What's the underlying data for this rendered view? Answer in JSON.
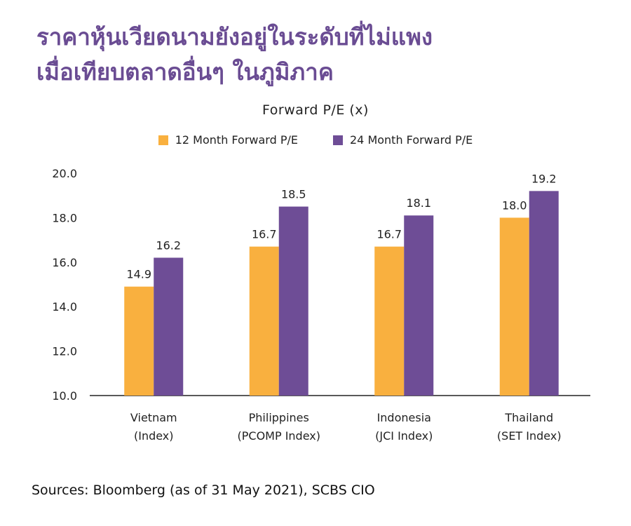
{
  "title_lines": [
    "ราคาหุ้นเวียดนามยังอยู่ในระดับที่ไม่แพง",
    "เมื่อเทียบตลาดอื่นๆ ในภูมิภาค"
  ],
  "source": "Sources: Bloomberg (as of 31 May 2021), SCBS CIO",
  "colors": {
    "series1": "#f9b03f",
    "series2": "#6e4d96"
  },
  "chart_data": {
    "type": "bar",
    "title": "Forward P/E (x)",
    "categories": [
      [
        "Vietnam",
        "(Index)"
      ],
      [
        "Philippines",
        "(PCOMP Index)"
      ],
      [
        "Indonesia",
        "(JCI Index)"
      ],
      [
        "Thailand",
        "(SET Index)"
      ]
    ],
    "series": [
      {
        "name": "12 Month Forward P/E",
        "values": [
          14.9,
          16.7,
          16.7,
          18.0
        ]
      },
      {
        "name": "24 Month Forward P/E",
        "values": [
          16.2,
          18.5,
          18.1,
          19.2
        ]
      }
    ],
    "ylim": [
      10,
      20
    ],
    "yticks": [
      "10.0",
      "12.0",
      "14.0",
      "16.0",
      "18.0",
      "20.0"
    ],
    "legend": "top",
    "grid": false
  }
}
